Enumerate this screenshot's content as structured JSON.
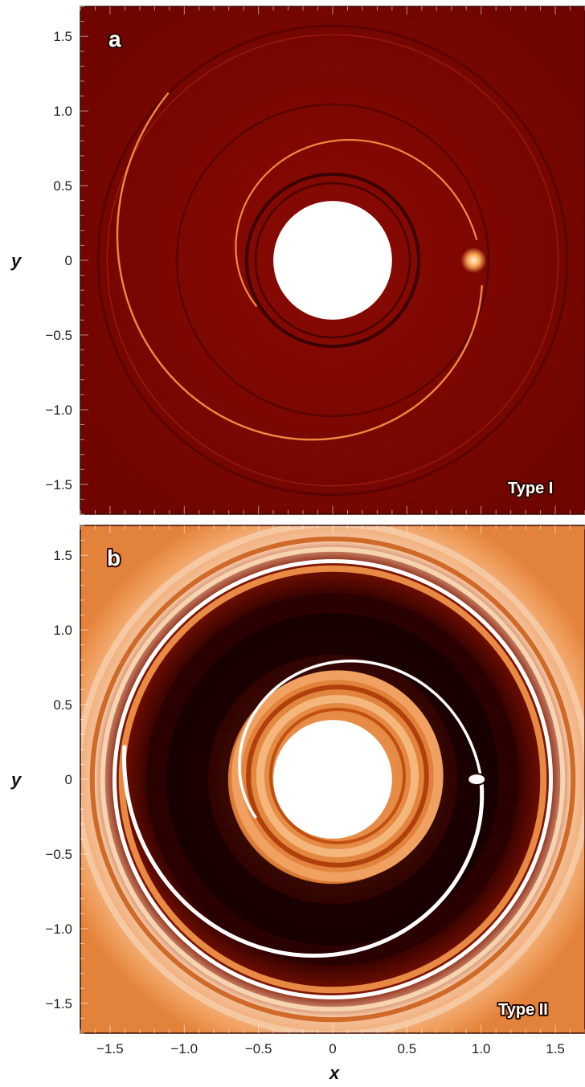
{
  "figure": {
    "x_axis_title": "x",
    "y_axis_title": "y",
    "x_ticks": [
      "−1.5",
      "−1.0",
      "−0.5",
      "0",
      "0.5",
      "1.0",
      "1.5"
    ],
    "x_tick_values": [
      -1.5,
      -1.0,
      -0.5,
      0,
      0.5,
      1.0,
      1.5
    ],
    "y_ticks": [
      "1.5",
      "1.0",
      "0.5",
      "0",
      "−0.5",
      "−1.0",
      "−1.5"
    ],
    "y_tick_values": [
      1.5,
      1.0,
      0.5,
      0,
      -0.5,
      -1.0,
      -1.5
    ],
    "extent": [
      -1.7,
      1.7
    ],
    "panels": [
      {
        "letter": "a",
        "type_label": "Type I",
        "background_color": "#7a0600",
        "wake_color": "#f08a40",
        "planet_position": [
          1.0,
          0.0
        ]
      },
      {
        "letter": "b",
        "type_label": "Type II",
        "background_color": "#e3823a",
        "gap_color": "#3a0000",
        "wake_color": "#ffffff",
        "planet_position": [
          1.0,
          0.0
        ]
      }
    ]
  }
}
